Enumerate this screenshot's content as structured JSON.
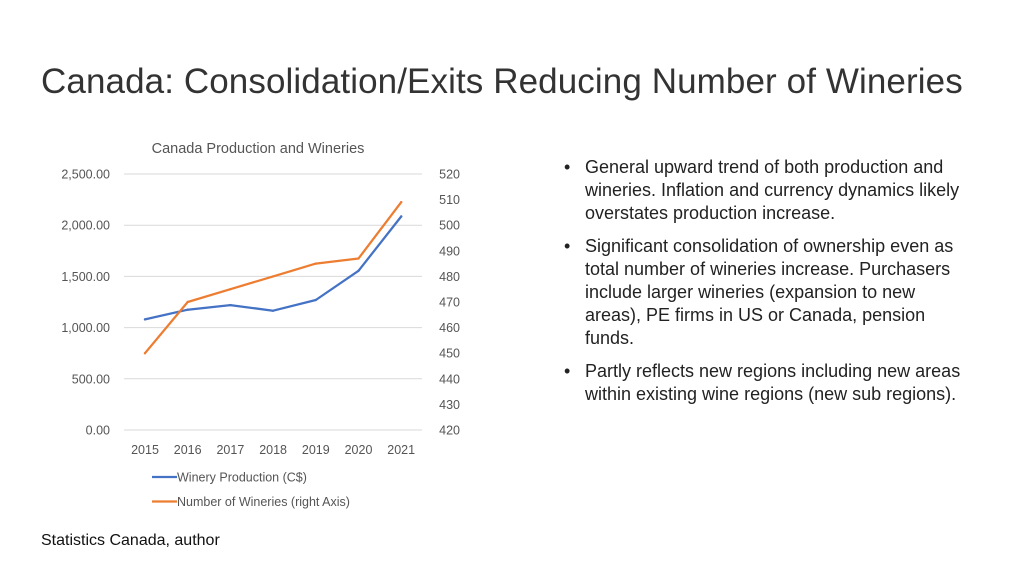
{
  "slide": {
    "title": "Canada: Consolidation/Exits Reducing Number of Wineries",
    "source": "Statistics Canada, author"
  },
  "bullets": [
    {
      "marker": "•",
      "text": "General upward trend of both production and wineries. Inflation and currency dynamics likely overstates production increase."
    },
    {
      "marker": "•",
      "text": "Significant consolidation of ownership even as total number of wineries increase. Purchasers include larger wineries (expansion to new areas), PE firms in US or Canada, pension funds."
    },
    {
      "marker": "•",
      "text": "Partly reflects new regions including new areas within existing wine regions (new sub regions)."
    }
  ],
  "chart_data": {
    "type": "line",
    "title": "Canada Production and Wineries",
    "categories": [
      "2015",
      "2016",
      "2017",
      "2018",
      "2019",
      "2020",
      "2021"
    ],
    "y_left": {
      "min": 0,
      "max": 2500,
      "step": 500,
      "tick_labels": [
        "0.00",
        "500.00",
        "1,000.00",
        "1,500.00",
        "2,000.00",
        "2,500.00"
      ]
    },
    "y_right": {
      "min": 420,
      "max": 520,
      "step": 10,
      "tick_labels": [
        "420",
        "430",
        "440",
        "450",
        "460",
        "470",
        "480",
        "490",
        "500",
        "510",
        "520"
      ]
    },
    "grid": true,
    "legend_position": "bottom",
    "series": [
      {
        "name": "Winery Production (C$)",
        "axis": "left",
        "color": "#4472C4",
        "values": [
          1080,
          1175,
          1220,
          1165,
          1270,
          1555,
          2085
        ]
      },
      {
        "name": "Number of Wineries (right Axis)",
        "axis": "right",
        "color": "#ED7D31",
        "values": [
          450,
          470,
          475,
          480,
          485,
          487,
          509
        ]
      }
    ]
  }
}
